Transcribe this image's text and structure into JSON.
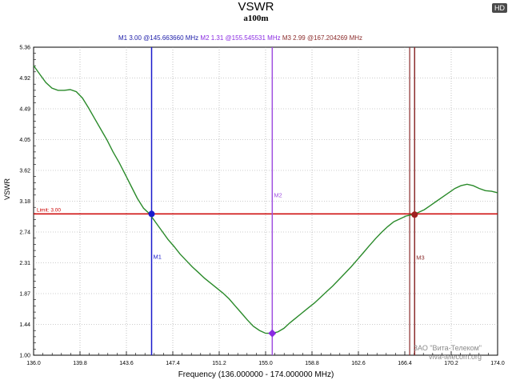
{
  "header": {
    "title": "VSWR",
    "subtitle": "a100m",
    "badge": "HD"
  },
  "markers_readout": {
    "m1": "M1  3.00 @145.663660 MHz",
    "m2": "M2  1.31 @155.545531 MHz",
    "m3": "M3  2.99 @167.204269 MHz"
  },
  "watermark": {
    "line1": "ЗАО \"Вита-Телеком\"",
    "line2": "viva-telecom.org"
  },
  "chart_data": {
    "type": "line",
    "title": "VSWR",
    "subtitle": "a100m",
    "xlabel": "Frequency (136.000000 - 174.000000 MHz)",
    "ylabel": "VSWR",
    "xlim": [
      136.0,
      174.0
    ],
    "ylim": [
      1.0,
      5.36
    ],
    "x_ticks": [
      "136.0",
      "139.8",
      "143.6",
      "147.4",
      "151.2",
      "155.0",
      "158.8",
      "162.6",
      "166.4",
      "170.2",
      "174.0"
    ],
    "y_ticks": [
      "1.00",
      "1.44",
      "1.87",
      "2.31",
      "2.74",
      "3.18",
      "3.62",
      "4.05",
      "4.49",
      "4.92",
      "5.36"
    ],
    "grid": true,
    "limit": {
      "value": 3.0,
      "label": "Limit: 3.00",
      "color": "#cc0000"
    },
    "series": [
      {
        "name": "VSWR",
        "color": "#2a8a2a",
        "x": [
          136.0,
          136.5,
          137.0,
          137.5,
          138.0,
          138.5,
          139.0,
          139.5,
          140.0,
          140.5,
          141.0,
          141.5,
          142.0,
          142.5,
          143.0,
          143.5,
          144.0,
          144.5,
          145.0,
          145.5,
          146.0,
          146.5,
          147.0,
          147.5,
          148.0,
          148.5,
          149.0,
          149.5,
          150.0,
          150.5,
          151.0,
          151.5,
          152.0,
          152.5,
          153.0,
          153.5,
          154.0,
          154.5,
          155.0,
          155.5,
          156.0,
          156.5,
          157.0,
          157.5,
          158.0,
          158.5,
          159.0,
          159.5,
          160.0,
          160.5,
          161.0,
          161.5,
          162.0,
          162.5,
          163.0,
          163.5,
          164.0,
          164.5,
          165.0,
          165.5,
          166.0,
          166.5,
          167.0,
          167.5,
          168.0,
          168.5,
          169.0,
          169.5,
          170.0,
          170.5,
          171.0,
          171.5,
          172.0,
          172.5,
          173.0,
          173.5,
          174.0
        ],
        "y": [
          5.1,
          4.98,
          4.86,
          4.78,
          4.75,
          4.75,
          4.76,
          4.73,
          4.64,
          4.5,
          4.35,
          4.2,
          4.05,
          3.88,
          3.73,
          3.56,
          3.39,
          3.22,
          3.08,
          3.0,
          2.88,
          2.76,
          2.64,
          2.54,
          2.43,
          2.34,
          2.25,
          2.17,
          2.09,
          2.02,
          1.95,
          1.88,
          1.8,
          1.7,
          1.6,
          1.5,
          1.41,
          1.35,
          1.31,
          1.31,
          1.33,
          1.38,
          1.46,
          1.53,
          1.6,
          1.67,
          1.74,
          1.82,
          1.9,
          1.98,
          2.07,
          2.16,
          2.25,
          2.35,
          2.45,
          2.55,
          2.65,
          2.74,
          2.82,
          2.89,
          2.93,
          2.97,
          2.99,
          3.02,
          3.06,
          3.12,
          3.18,
          3.24,
          3.3,
          3.36,
          3.4,
          3.42,
          3.4,
          3.36,
          3.33,
          3.32,
          3.3
        ]
      }
    ],
    "markers": [
      {
        "id": "M1",
        "label": "M1",
        "x": 145.66366,
        "y": 3.0,
        "color": "#1a1acc",
        "point_color": "#1a1acc"
      },
      {
        "id": "M2",
        "label": "M2",
        "x": 155.545531,
        "y": 1.31,
        "color": "#a050e0",
        "point_color": "#8a2be2"
      },
      {
        "id": "M3",
        "label": "M3",
        "x": 167.204269,
        "y": 2.99,
        "color": "#8b2c2c",
        "point_color": "#a02020"
      }
    ],
    "extra_vlines": [
      {
        "x": 166.8,
        "color": "#8b2c2c"
      }
    ]
  }
}
